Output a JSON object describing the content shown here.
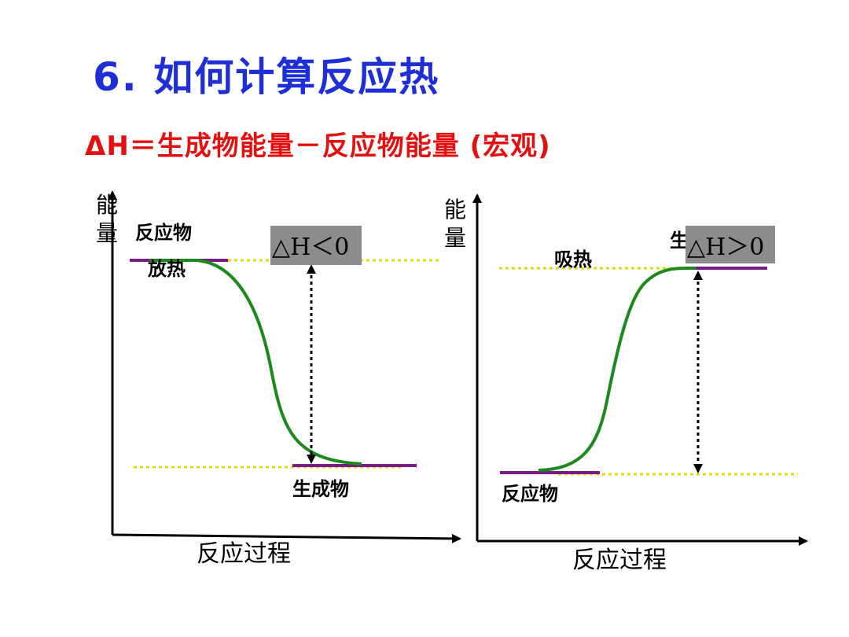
{
  "title": "6. 如何计算反应热",
  "formula": "ΔH＝生成物能量－反应物能量 (宏观)",
  "colors": {
    "title": "#1f2fd8",
    "formula": "#e60f0f",
    "curve": "#1a8a1a",
    "level_line": "#7a1a8a",
    "dotted_level": "#e6d800",
    "dh_box": "#8c8c8c"
  },
  "left_diagram": {
    "y_axis_label_1": "能",
    "y_axis_label_2": "量",
    "x_axis_label": "反应过程",
    "reactant_label": "反应物",
    "heat_label": "放热",
    "product_label": "生成物",
    "dh_label": "△H＜0"
  },
  "right_diagram": {
    "y_axis_label_1": "能",
    "y_axis_label_2": "量",
    "x_axis_label": "反应过程",
    "reactant_label": "反应物",
    "heat_label": "吸热",
    "product_label_partial": "生",
    "dh_label": "△H＞0"
  }
}
